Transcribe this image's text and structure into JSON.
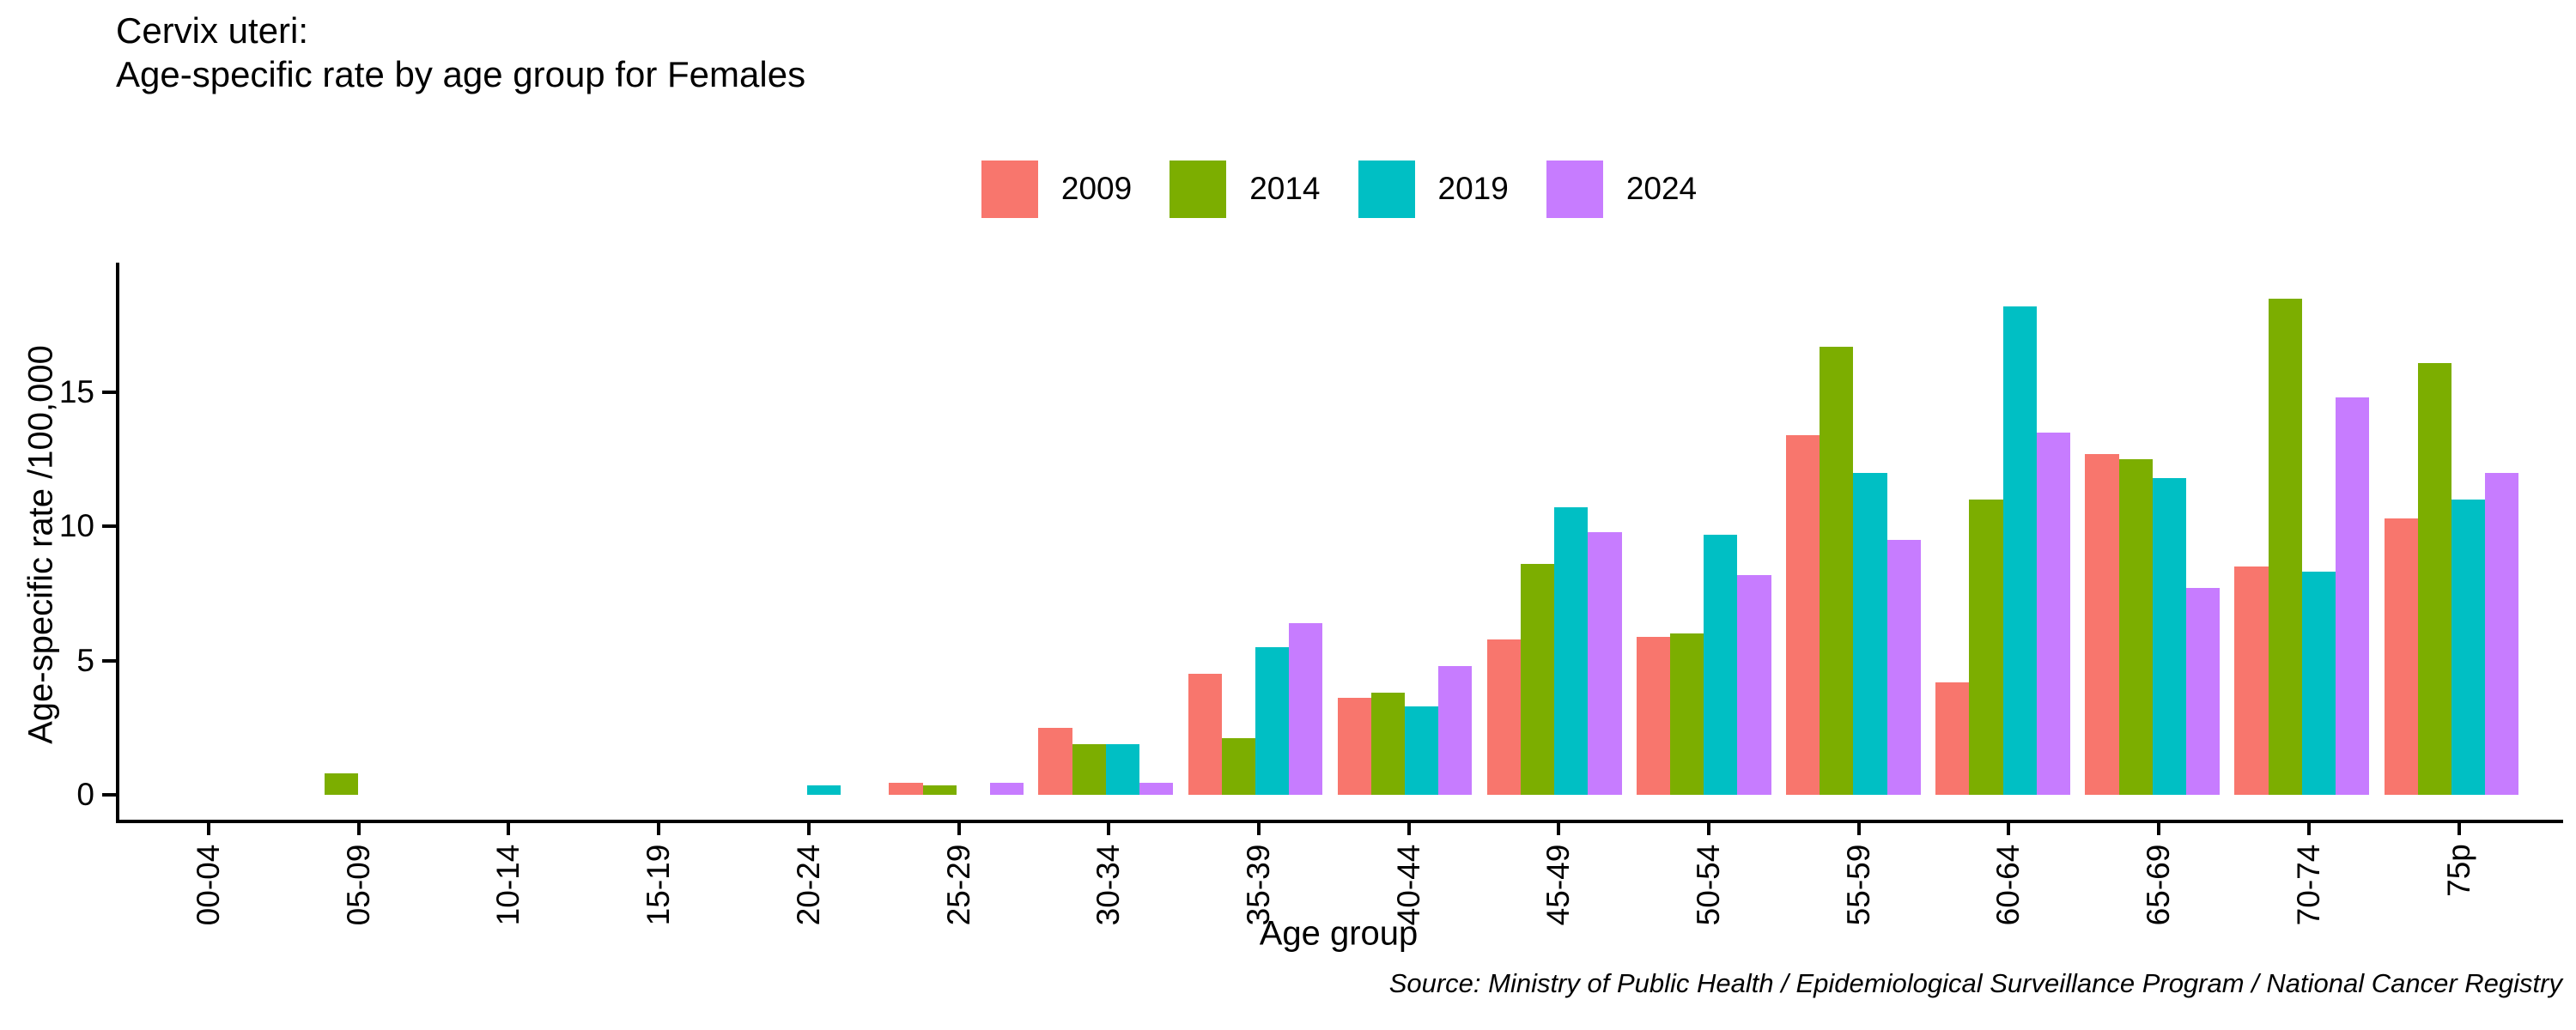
{
  "title": {
    "line1": "Cervix uteri:",
    "line2": "Age-specific rate by age group for Females"
  },
  "axes": {
    "y_title": "Age-specific rate /100,000",
    "x_title": "Age group"
  },
  "source": "Source: Ministry of Public Health / Epidemiological Surveillance Program / National Cancer Registry",
  "chart_data": {
    "type": "bar",
    "title": "Cervix uteri: Age-specific rate by age group for Females",
    "categories": [
      "00-04",
      "05-09",
      "10-14",
      "15-19",
      "20-24",
      "25-29",
      "30-34",
      "35-39",
      "40-44",
      "45-49",
      "50-54",
      "55-59",
      "60-64",
      "65-69",
      "70-74",
      "75p"
    ],
    "series": [
      {
        "name": "2009",
        "color": "#F8766D",
        "values": [
          0,
          0,
          0,
          0,
          0,
          0.45,
          2.5,
          4.5,
          3.6,
          5.8,
          5.9,
          13.4,
          4.2,
          12.7,
          8.5,
          10.3
        ]
      },
      {
        "name": "2014",
        "color": "#7CAE00",
        "values": [
          0,
          0.8,
          0,
          0,
          0,
          0.35,
          1.9,
          2.1,
          3.8,
          8.6,
          6.0,
          16.7,
          11.0,
          12.5,
          18.5,
          16.1
        ]
      },
      {
        "name": "2019",
        "color": "#00BFC4",
        "values": [
          0,
          0,
          0,
          0,
          0.35,
          0,
          1.9,
          5.5,
          3.3,
          10.7,
          9.7,
          12.0,
          18.2,
          11.8,
          8.3,
          11.0
        ]
      },
      {
        "name": "2024",
        "color": "#C77CFF",
        "values": [
          0,
          0,
          0,
          0,
          0,
          0.45,
          0.45,
          6.4,
          4.8,
          9.8,
          8.2,
          9.5,
          13.5,
          7.7,
          14.8,
          12.0
        ]
      }
    ],
    "xlabel": "Age group",
    "ylabel": "Age-specific rate /100,000",
    "ylim": [
      0,
      19.8
    ],
    "y_ticks": [
      0,
      5,
      10,
      15
    ],
    "grid": false,
    "legend_position": "top-center",
    "bar_group_ratio": 0.9
  }
}
